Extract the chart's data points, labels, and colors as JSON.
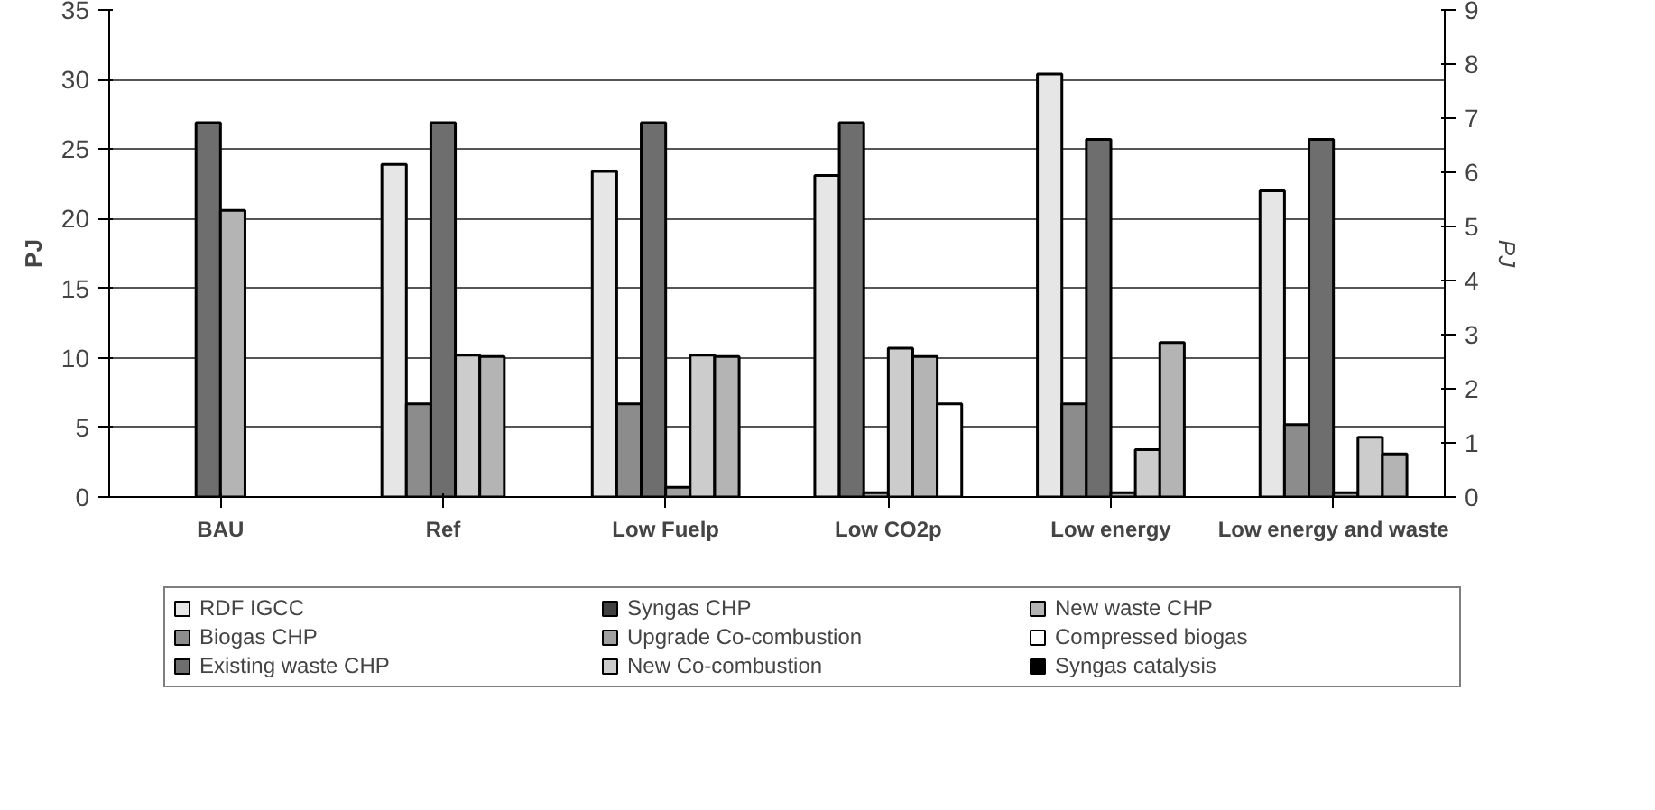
{
  "chart_data": {
    "type": "bar",
    "ylabel": "PJ",
    "y2label": "PJ",
    "categories": [
      "BAU",
      "Ref",
      "Low Fuelp",
      "Low CO2p",
      "Low energy",
      "Low energy and waste"
    ],
    "series": [
      {
        "name": "RDF IGCC",
        "color": "#e6e6e6",
        "values": [
          null,
          23.9,
          23.4,
          23.1,
          30.4,
          22.0
        ]
      },
      {
        "name": "Biogas CHP",
        "color": "#8c8c8c",
        "values": [
          null,
          6.7,
          6.7,
          null,
          6.7,
          5.2
        ]
      },
      {
        "name": "Existing waste CHP",
        "color": "#6e6e6e",
        "values": [
          26.9,
          26.9,
          26.9,
          26.9,
          25.7,
          25.7
        ]
      },
      {
        "name": "Syngas CHP",
        "color": "#404040",
        "values": [
          null,
          null,
          null,
          null,
          null,
          null
        ]
      },
      {
        "name": "Upgrade Co-combustion",
        "color": "#a0a0a0",
        "values": [
          null,
          null,
          0.7,
          0.3,
          0.3,
          0.3
        ]
      },
      {
        "name": "New Co-combustion",
        "color": "#cccccc",
        "values": [
          null,
          10.2,
          10.2,
          10.7,
          3.4,
          4.3
        ]
      },
      {
        "name": "New waste CHP",
        "color": "#b4b4b4",
        "values": [
          20.6,
          10.1,
          10.1,
          10.1,
          11.1,
          3.1
        ]
      },
      {
        "name": "Compressed biogas",
        "color": "#ffffff",
        "values": [
          null,
          null,
          null,
          6.7,
          null,
          null
        ]
      },
      {
        "name": "Syngas catalysis",
        "color": "#000000",
        "values": [
          null,
          null,
          null,
          null,
          null,
          null
        ]
      }
    ],
    "ylim": [
      0,
      35
    ],
    "yticks": [
      0,
      5,
      10,
      15,
      20,
      25,
      30,
      35
    ],
    "y2lim": [
      0,
      9
    ],
    "y2ticks": [
      0,
      1,
      2,
      3,
      4,
      5,
      6,
      7,
      8,
      9
    ],
    "grid": "y",
    "legend": "bottom"
  }
}
